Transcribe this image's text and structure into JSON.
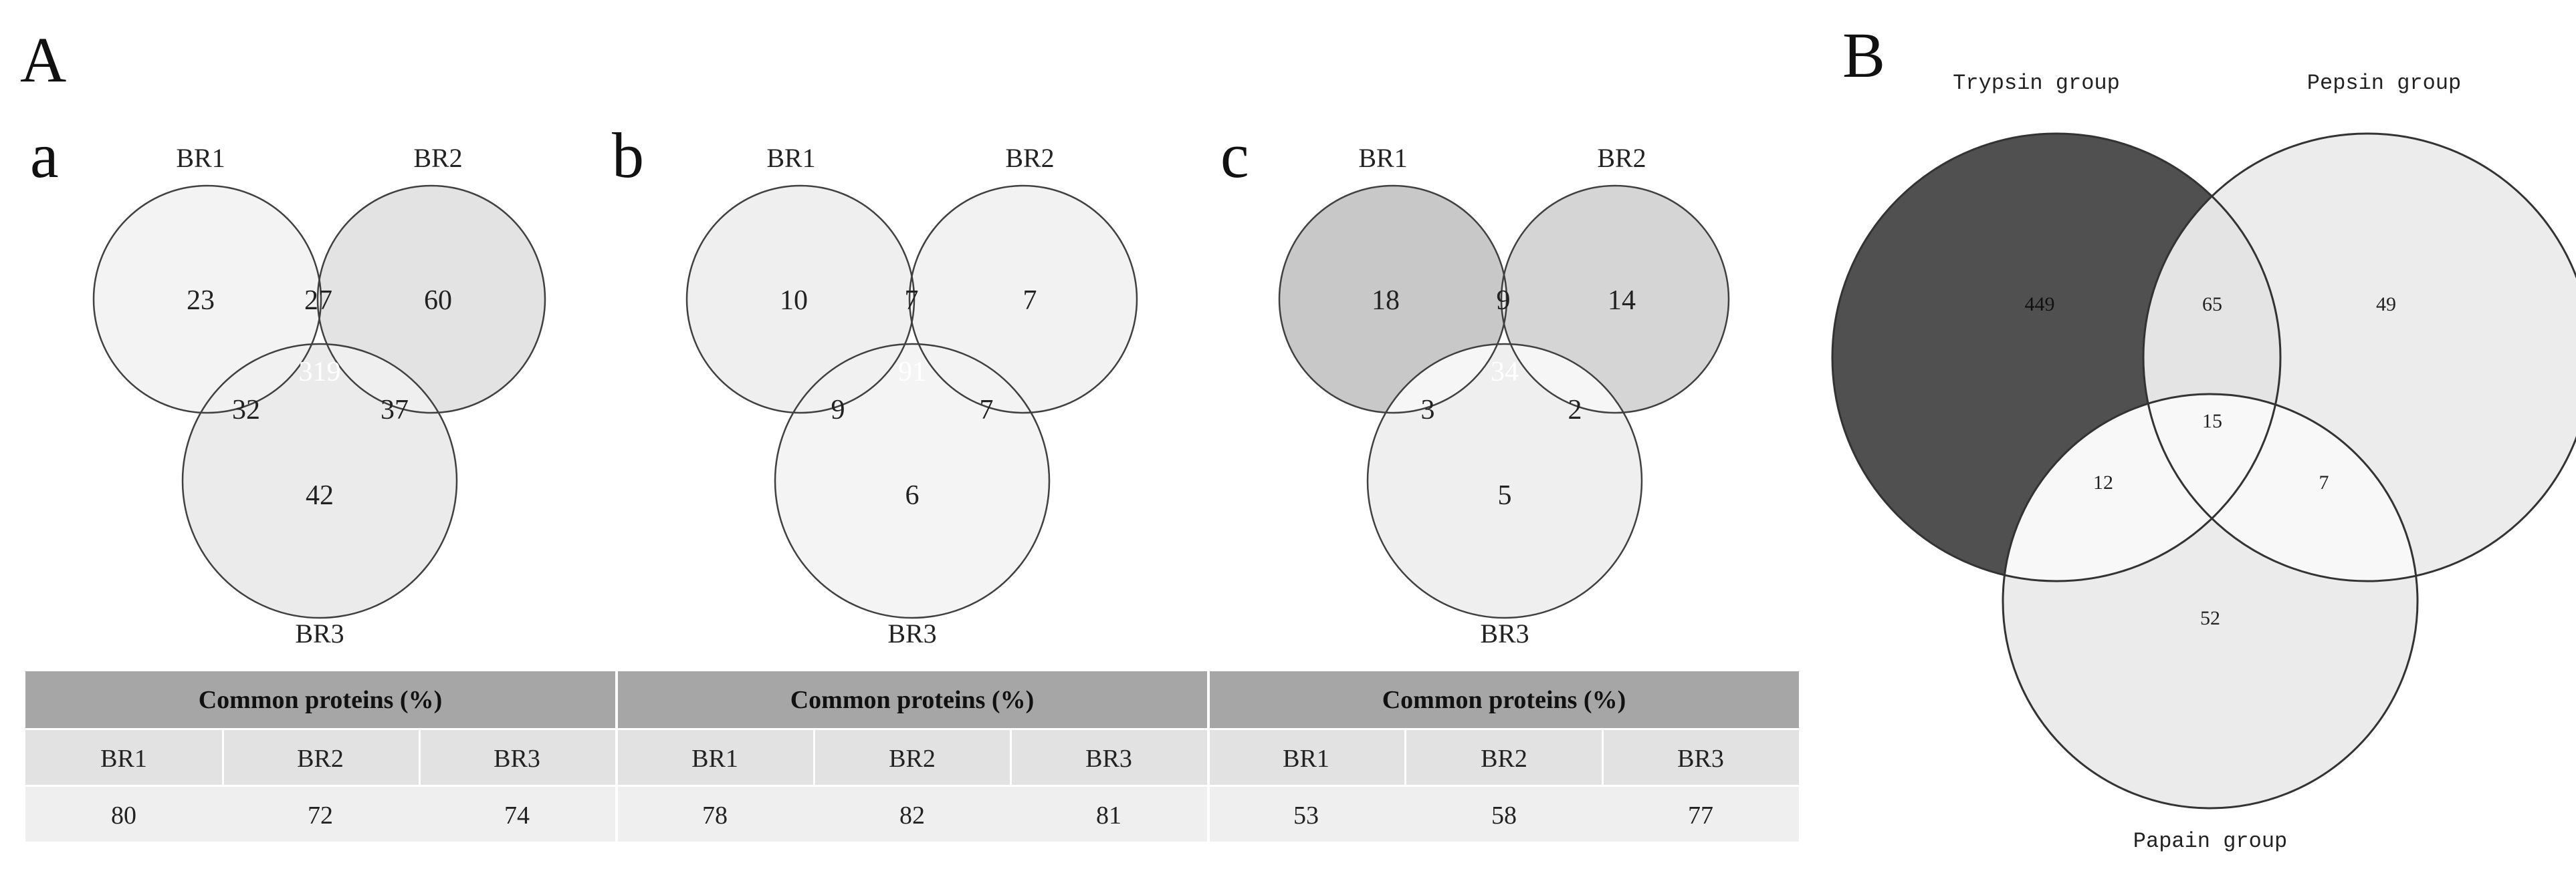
{
  "panel_A": {
    "label": "A",
    "venns": [
      {
        "label": "a",
        "sets": [
          "BR1",
          "BR2",
          "BR3"
        ],
        "regions": {
          "only1": "23",
          "only2": "60",
          "only3": "42",
          "r12": "27",
          "r13": "32",
          "r23": "37",
          "r123": "319"
        }
      },
      {
        "label": "b",
        "sets": [
          "BR1",
          "BR2",
          "BR3"
        ],
        "regions": {
          "only1": "10",
          "only2": "7",
          "only3": "6",
          "r12": "7",
          "r13": "9",
          "r23": "7",
          "r123": "91"
        }
      },
      {
        "label": "c",
        "sets": [
          "BR1",
          "BR2",
          "BR3"
        ],
        "regions": {
          "only1": "18",
          "only2": "14",
          "only3": "5",
          "r12": "9",
          "r13": "3",
          "r23": "2",
          "r123": "34"
        }
      }
    ],
    "tables": [
      {
        "header": "Common proteins (%)",
        "columns": [
          "BR1",
          "BR2",
          "BR3"
        ],
        "values": [
          "80",
          "72",
          "74"
        ]
      },
      {
        "header": "Common proteins (%)",
        "columns": [
          "BR1",
          "BR2",
          "BR3"
        ],
        "values": [
          "78",
          "82",
          "81"
        ]
      },
      {
        "header": "Common proteins (%)",
        "columns": [
          "BR1",
          "BR2",
          "BR3"
        ],
        "values": [
          "53",
          "58",
          "77"
        ]
      }
    ]
  },
  "panel_B": {
    "label": "B",
    "sets": [
      "Trypsin group",
      "Pepsin group",
      "Papain group"
    ],
    "regions": {
      "only1": "449",
      "only2": "49",
      "only3": "52",
      "r12": "65",
      "r13": "12",
      "r23": "7",
      "r123": "15"
    }
  },
  "colors": {
    "dark": "#505050",
    "mid": "#c8c8c8",
    "light": "#ebebeb",
    "lighter": "#f3f3f3",
    "table_header": "#a6a6a6",
    "table_col": "#e2e2e2",
    "table_val": "#efefef",
    "stroke": "#404040"
  }
}
